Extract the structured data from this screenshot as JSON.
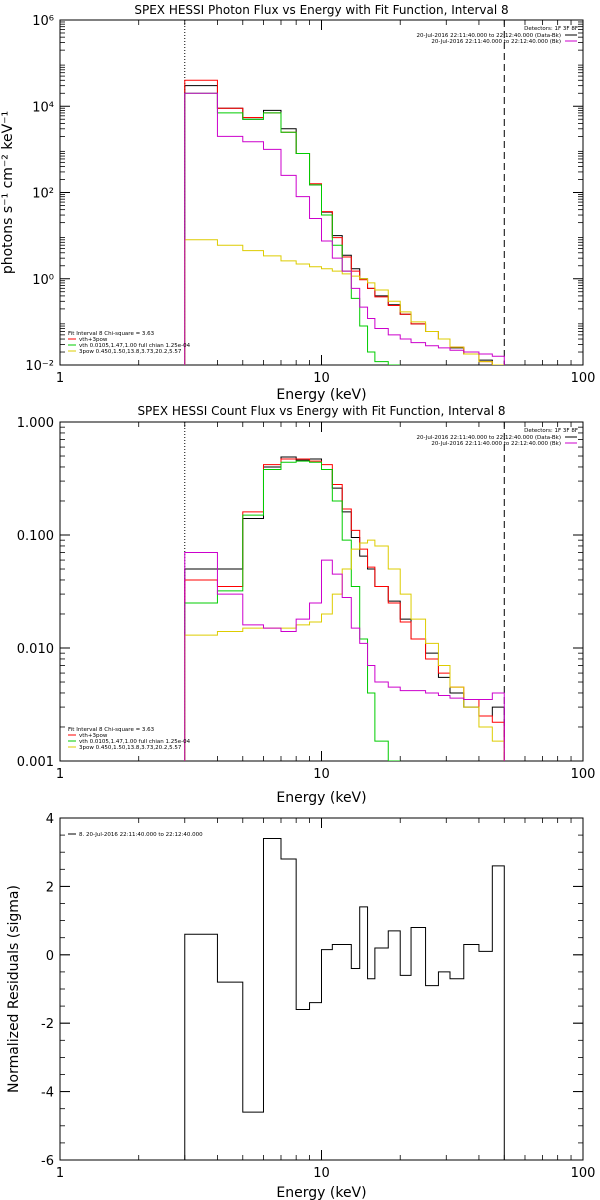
{
  "chart_data": [
    {
      "type": "line",
      "title": "SPEX HESSI Photon Flux vs Energy with Fit Function, Interval 8",
      "xlabel": "Energy (keV)",
      "ylabel": "photons s⁻¹ cm⁻² keV⁻¹",
      "xscale": "log",
      "yscale": "log",
      "xlim": [
        1,
        100
      ],
      "ylim": [
        0.01,
        1000000
      ],
      "x_ticks": [
        {
          "value": 1,
          "label": "1"
        },
        {
          "value": 10,
          "label": "10"
        },
        {
          "value": 100,
          "label": "100"
        }
      ],
      "y_ticks": [
        {
          "value": 0.01,
          "label": "10⁻²"
        },
        {
          "value": 1,
          "label": "10⁰"
        },
        {
          "value": 100,
          "label": "10²"
        },
        {
          "value": 10000,
          "label": "10⁴"
        },
        {
          "value": 1000000,
          "label": "10⁶"
        }
      ],
      "energy_range_markers": [
        3,
        50
      ],
      "detectors_text": "Detectors: 1F 3F 8F",
      "legend_right": [
        {
          "text": "20-Jul-2016 22:11:40.000 to 22:12:40.000 (Data-Bk)",
          "color": "#000000"
        },
        {
          "text": "20-Jul-2016 22:11:40.000 to 22:12:40.000 (Bk)",
          "color": "#cc00cc"
        }
      ],
      "legend_left": [
        {
          "text": "Fit Interval 8   Chi-square = 3.63",
          "color": "#000000"
        },
        {
          "text": "vth+3pow",
          "color": "#ff0000"
        },
        {
          "text": "vth 0.0105,1.47,1.00  full chian 1.25e-04",
          "color": "#00cc00"
        },
        {
          "text": "3pow 0.450,1.50,13.8,3.73,20.2,5.57",
          "color": "#ddcc00"
        }
      ],
      "edges": [
        3,
        4,
        5,
        6,
        7,
        8,
        9,
        10,
        11,
        12,
        13,
        14,
        15,
        16,
        18,
        20,
        22,
        25,
        28,
        31,
        35,
        40,
        45,
        50
      ],
      "series": [
        {
          "name": "Data-Bk",
          "color": "#000000",
          "values": [
            30000,
            9000,
            5000,
            8000,
            3000,
            800,
            150,
            35,
            10,
            3.5,
            1.7,
            1.0,
            0.6,
            0.4,
            0.25,
            0.15,
            0.09,
            0.06,
            0.04,
            0.025,
            0.018,
            0.013,
            0.01
          ]
        },
        {
          "name": "vth+3pow",
          "color": "#ff0000",
          "values": [
            40000,
            9000,
            5500,
            7000,
            2500,
            800,
            160,
            36,
            9,
            3.2,
            1.5,
            0.95,
            0.6,
            0.38,
            0.24,
            0.15,
            0.09,
            0.06,
            0.04,
            0.026,
            0.018,
            0.012,
            0.009
          ]
        },
        {
          "name": "vth",
          "color": "#00cc00",
          "values": [
            20000,
            7000,
            5000,
            7000,
            2500,
            800,
            150,
            30,
            6,
            1.5,
            0.35,
            0.08,
            0.02,
            0.012,
            0.008
          ]
        },
        {
          "name": "3pow",
          "color": "#ddcc00",
          "values": [
            8,
            6,
            4.5,
            3.4,
            2.6,
            2.2,
            1.9,
            1.7,
            1.5,
            1.3,
            1.15,
            1.0,
            0.8,
            0.55,
            0.3,
            0.17,
            0.1,
            0.06,
            0.04,
            0.026,
            0.018,
            0.012,
            0.008
          ]
        },
        {
          "name": "Bk",
          "color": "#cc00cc",
          "values": [
            20000,
            2000,
            1500,
            1000,
            250,
            80,
            25,
            7.5,
            3,
            1.5,
            0.6,
            0.22,
            0.12,
            0.07,
            0.05,
            0.04,
            0.033,
            0.028,
            0.025,
            0.022,
            0.02,
            0.018,
            0.016
          ]
        }
      ]
    },
    {
      "type": "line",
      "title": "SPEX HESSI Count Flux vs Energy with Fit Function, Interval 8",
      "xlabel": "Energy (keV)",
      "xscale": "log",
      "yscale": "log",
      "xlim": [
        1,
        100
      ],
      "ylim": [
        0.001,
        1
      ],
      "x_ticks": [
        {
          "value": 1,
          "label": "1"
        },
        {
          "value": 10,
          "label": "10"
        },
        {
          "value": 100,
          "label": "100"
        }
      ],
      "y_ticks": [
        {
          "value": 0.001,
          "label": "0.001"
        },
        {
          "value": 0.01,
          "label": "0.010"
        },
        {
          "value": 0.1,
          "label": "0.100"
        },
        {
          "value": 1,
          "label": "1.000"
        }
      ],
      "energy_range_markers": [
        3,
        50
      ],
      "detectors_text": "Detectors: 1F 3F 8F",
      "legend_right": [
        {
          "text": "20-Jul-2016 22:11:40.000 to 22:12:40.000 (Data-Bk)",
          "color": "#000000"
        },
        {
          "text": "20-Jul-2016 22:11:40.000 to 22:12:40.000 (Bk)",
          "color": "#cc00cc"
        }
      ],
      "legend_left": [
        {
          "text": "Fit Interval 8   Chi-square = 3.63",
          "color": "#000000"
        },
        {
          "text": "vth+3pow",
          "color": "#ff0000"
        },
        {
          "text": "vth 0.0105,1.47,1.00  full chian 1.25e-04",
          "color": "#00cc00"
        },
        {
          "text": "3pow 0.450,1.50,13.8,3.73,20.2,5.57",
          "color": "#ddcc00"
        }
      ],
      "edges": [
        3,
        4,
        5,
        6,
        7,
        8,
        9,
        10,
        11,
        12,
        13,
        14,
        15,
        16,
        18,
        20,
        22,
        25,
        28,
        31,
        35,
        40,
        45,
        50
      ],
      "series": [
        {
          "name": "Data-Bk",
          "color": "#000000",
          "values": [
            0.05,
            0.05,
            0.14,
            0.4,
            0.49,
            0.46,
            0.47,
            0.38,
            0.26,
            0.16,
            0.095,
            0.065,
            0.05,
            0.035,
            0.026,
            0.018,
            0.012,
            0.009,
            0.0055,
            0.004,
            0.003,
            0.0025,
            0.003
          ]
        },
        {
          "name": "vth+3pow",
          "color": "#ff0000",
          "values": [
            0.04,
            0.035,
            0.16,
            0.42,
            0.47,
            0.47,
            0.45,
            0.42,
            0.28,
            0.17,
            0.11,
            0.075,
            0.052,
            0.035,
            0.025,
            0.017,
            0.012,
            0.008,
            0.006,
            0.0045,
            0.0035,
            0.0025,
            0.0022
          ]
        },
        {
          "name": "vth",
          "color": "#00cc00",
          "values": [
            0.025,
            0.032,
            0.15,
            0.38,
            0.44,
            0.45,
            0.44,
            0.38,
            0.2,
            0.09,
            0.035,
            0.012,
            0.004,
            0.0015,
            0.0008
          ]
        },
        {
          "name": "3pow",
          "color": "#ddcc00",
          "values": [
            0.013,
            0.014,
            0.015,
            0.015,
            0.015,
            0.016,
            0.017,
            0.02,
            0.03,
            0.05,
            0.075,
            0.085,
            0.09,
            0.08,
            0.05,
            0.03,
            0.018,
            0.011,
            0.007,
            0.0045,
            0.003,
            0.002,
            0.0015
          ]
        },
        {
          "name": "Bk",
          "color": "#cc00cc",
          "values": [
            0.07,
            0.03,
            0.016,
            0.015,
            0.014,
            0.018,
            0.025,
            0.06,
            0.045,
            0.028,
            0.015,
            0.011,
            0.007,
            0.005,
            0.0045,
            0.0042,
            0.0042,
            0.004,
            0.0038,
            0.0036,
            0.0035,
            0.0035,
            0.004
          ]
        }
      ]
    },
    {
      "type": "line",
      "xlabel": "Energy (keV)",
      "ylabel": "Normalized Residuals (sigma)",
      "xscale": "log",
      "yscale": "linear",
      "xlim": [
        1,
        100
      ],
      "ylim": [
        -6,
        4
      ],
      "x_ticks": [
        {
          "value": 1,
          "label": "1"
        },
        {
          "value": 10,
          "label": "10"
        },
        {
          "value": 100,
          "label": "100"
        }
      ],
      "y_ticks": [
        {
          "value": -6,
          "label": "-6"
        },
        {
          "value": -4,
          "label": "-4"
        },
        {
          "value": -2,
          "label": "-2"
        },
        {
          "value": 0,
          "label": "0"
        },
        {
          "value": 2,
          "label": "2"
        },
        {
          "value": 4,
          "label": "4"
        }
      ],
      "legend_left": [
        {
          "text": "8. 20-Jul-2016 22:11:40.000 to 22:12:40.000",
          "color": "#000000"
        }
      ],
      "edges": [
        3,
        4,
        5,
        6,
        7,
        8,
        9,
        10,
        11,
        12,
        13,
        14,
        15,
        16,
        18,
        20,
        22,
        25,
        28,
        31,
        35,
        40,
        45,
        50
      ],
      "series": [
        {
          "color": "#000000",
          "values": [
            0.6,
            -0.8,
            -4.6,
            3.4,
            2.8,
            -1.6,
            -1.4,
            0.15,
            0.3,
            0.3,
            -0.4,
            1.4,
            -0.7,
            0.2,
            0.7,
            -0.6,
            0.8,
            -0.9,
            -0.5,
            -0.7,
            0.3,
            0.1,
            2.6
          ]
        }
      ]
    }
  ]
}
